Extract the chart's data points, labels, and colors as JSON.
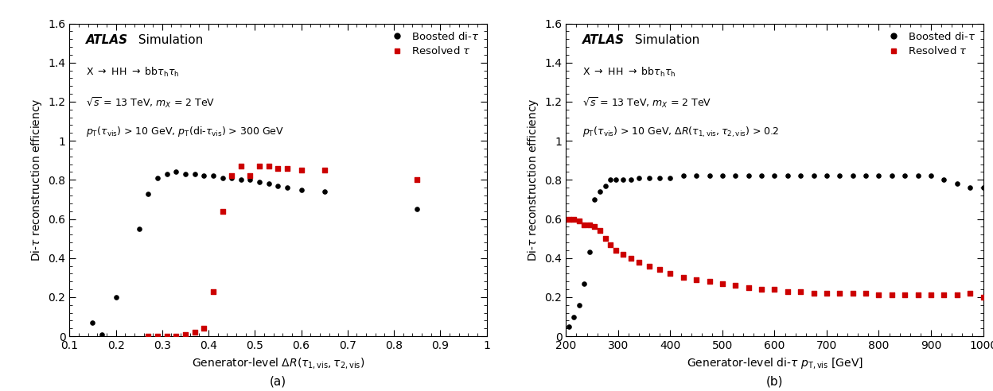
{
  "plot_a": {
    "title_label": "(a)",
    "xlabel": "Generator-level $\\Delta R(\\tau_{1,\\mathrm{vis}},\\tau_{2,\\mathrm{vis}})$",
    "ylabel": "Di-$\\tau$ reconstruction efficiency",
    "xlim": [
      0.1,
      1.0
    ],
    "ylim": [
      0.0,
      1.6
    ],
    "xticks": [
      0.1,
      0.2,
      0.3,
      0.4,
      0.5,
      0.6,
      0.7,
      0.8,
      0.9,
      1.0
    ],
    "yticks": [
      0.0,
      0.2,
      0.4,
      0.6,
      0.8,
      1.0,
      1.2,
      1.4,
      1.6
    ],
    "atlas_line": "ATLAS",
    "sim_line": " Simulation",
    "text_line1": "X $\\rightarrow$ HH $\\rightarrow$ bb$\\tau_{\\rm h}\\tau_{\\rm h}$",
    "text_line2": "$\\sqrt{s}$ = 13 TeV, $m_{X}$ = 2 TeV",
    "text_line3": "$p_{\\rm T}(\\tau_{\\rm vis})$ > 10 GeV, $p_{\\rm T}$(di-$\\tau_{\\rm vis}$) > 300 GeV",
    "boosted_x": [
      0.15,
      0.17,
      0.2,
      0.25,
      0.27,
      0.29,
      0.31,
      0.33,
      0.35,
      0.37,
      0.39,
      0.41,
      0.43,
      0.45,
      0.47,
      0.49,
      0.51,
      0.53,
      0.55,
      0.57,
      0.6,
      0.65,
      0.85
    ],
    "boosted_y": [
      0.07,
      0.01,
      0.2,
      0.55,
      0.73,
      0.81,
      0.83,
      0.84,
      0.83,
      0.83,
      0.82,
      0.82,
      0.81,
      0.81,
      0.8,
      0.8,
      0.79,
      0.78,
      0.77,
      0.76,
      0.75,
      0.74,
      0.65
    ],
    "resolved_x": [
      0.27,
      0.29,
      0.31,
      0.33,
      0.35,
      0.37,
      0.39,
      0.41,
      0.43,
      0.45,
      0.47,
      0.49,
      0.51,
      0.53,
      0.55,
      0.57,
      0.6,
      0.65,
      0.85
    ],
    "resolved_y": [
      0.0,
      0.0,
      0.0,
      0.0,
      0.01,
      0.02,
      0.04,
      0.23,
      0.64,
      0.82,
      0.87,
      0.82,
      0.87,
      0.87,
      0.86,
      0.86,
      0.85,
      0.85,
      0.8
    ]
  },
  "plot_b": {
    "title_label": "(b)",
    "xlabel": "Generator-level di-$\\tau$ $p_{\\rm T,vis}$ [GeV]",
    "ylabel": "Di-$\\tau$ reconstruction efficiency",
    "xlim": [
      200,
      1000
    ],
    "ylim": [
      0.0,
      1.6
    ],
    "xticks": [
      200,
      300,
      400,
      500,
      600,
      700,
      800,
      900,
      1000
    ],
    "yticks": [
      0.0,
      0.2,
      0.4,
      0.6,
      0.8,
      1.0,
      1.2,
      1.4,
      1.6
    ],
    "atlas_line": "ATLAS",
    "sim_line": " Simulation",
    "text_line1": "X $\\rightarrow$ HH $\\rightarrow$ bb$\\tau_{\\rm h}\\tau_{\\rm h}$",
    "text_line2": "$\\sqrt{s}$ = 13 TeV, $m_{X}$ = 2 TeV",
    "text_line3": "$p_{\\rm T}(\\tau_{\\rm vis})$ > 10 GeV, $\\Delta R(\\tau_{1,\\rm vis},\\tau_{2,\\rm vis})$ > 0.2",
    "boosted_x": [
      205,
      215,
      225,
      235,
      245,
      255,
      265,
      275,
      285,
      295,
      310,
      325,
      340,
      360,
      380,
      400,
      425,
      450,
      475,
      500,
      525,
      550,
      575,
      600,
      625,
      650,
      675,
      700,
      725,
      750,
      775,
      800,
      825,
      850,
      875,
      900,
      925,
      950,
      975,
      1000
    ],
    "boosted_y": [
      0.05,
      0.1,
      0.16,
      0.27,
      0.43,
      0.7,
      0.74,
      0.77,
      0.8,
      0.8,
      0.8,
      0.8,
      0.81,
      0.81,
      0.81,
      0.81,
      0.82,
      0.82,
      0.82,
      0.82,
      0.82,
      0.82,
      0.82,
      0.82,
      0.82,
      0.82,
      0.82,
      0.82,
      0.82,
      0.82,
      0.82,
      0.82,
      0.82,
      0.82,
      0.82,
      0.82,
      0.8,
      0.78,
      0.76,
      0.76
    ],
    "resolved_x": [
      205,
      215,
      225,
      235,
      245,
      255,
      265,
      275,
      285,
      295,
      310,
      325,
      340,
      360,
      380,
      400,
      425,
      450,
      475,
      500,
      525,
      550,
      575,
      600,
      625,
      650,
      675,
      700,
      725,
      750,
      775,
      800,
      825,
      850,
      875,
      900,
      925,
      950,
      975,
      1000
    ],
    "resolved_y": [
      0.6,
      0.6,
      0.59,
      0.57,
      0.57,
      0.56,
      0.54,
      0.5,
      0.47,
      0.44,
      0.42,
      0.4,
      0.38,
      0.36,
      0.34,
      0.32,
      0.3,
      0.29,
      0.28,
      0.27,
      0.26,
      0.25,
      0.24,
      0.24,
      0.23,
      0.23,
      0.22,
      0.22,
      0.22,
      0.22,
      0.22,
      0.21,
      0.21,
      0.21,
      0.21,
      0.21,
      0.21,
      0.21,
      0.22,
      0.2
    ]
  },
  "boosted_color": "#000000",
  "resolved_color": "#cc0000",
  "legend_boosted": "Boosted di-$\\tau$",
  "legend_resolved": "Resolved $\\tau$"
}
